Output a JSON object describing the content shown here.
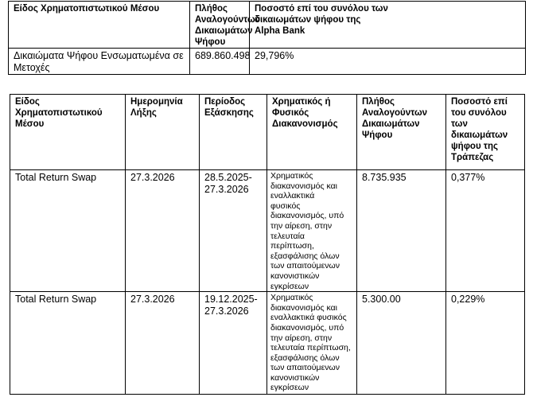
{
  "table1": {
    "headers": [
      "Είδος Χρηματοπιστωτικού Μέσου",
      "Πλήθος Αναλογούντων Δικαιωμάτων Ψήφου",
      "Ποσοστό επί του συνόλου των\nδικαιωμάτων ψήφου της\nAlpha Bank"
    ],
    "rows": [
      [
        "Δικαιώματα Ψήφου Ενσωματωμένα σε Μετοχές",
        "689.860.498",
        "29,796%"
      ]
    ]
  },
  "table2": {
    "headers": [
      "Είδος\nΧρηματοπιστωτικού\nΜέσου",
      "Ημερομηνία\nΛήξης",
      "Περίοδος\nΕξάσκησης",
      "Χρηματικός ή\nΦυσικός\nΔιακανονισμός",
      "Πλήθος\nΑναλογούντων\nΔικαιωμάτων\nΨήφου",
      "Ποσοστό επί\nτου συνόλου\nτων\nδικαιωμάτων\nψήφου της\nΤράπεζας"
    ],
    "rows": [
      [
        "Total Return Swap",
        "27.3.2026",
        "28.5.2025-\n27.3.2026",
        "Χρηματικός\nδιακανονισμός και\nεναλλακτικά\nφυσικός\nδιακανονισμός, υπό\nτην αίρεση, στην\nτελευταία\nπερίπτωση,\nεξασφάλισης όλων\nτων απαιτούμενων\nκανονιστικών\nεγκρίσεων",
        "8.735.935",
        "0,377%"
      ],
      [
        "Total Return Swap",
        "27.3.2026",
        "19.12.2025-\n27.3.2026",
        "Χρηματικός\nδιακανονισμός και\nεναλλακτικά φυσικός\nδιακανονισμός, υπό\nτην αίρεση, στην\nτελευταία περίπτωση,\nεξασφάλισης όλων\nτων απαιτούμενων\nκανονιστικών\nεγκρίσεων",
        "5.300.00",
        "0,229%"
      ]
    ]
  }
}
